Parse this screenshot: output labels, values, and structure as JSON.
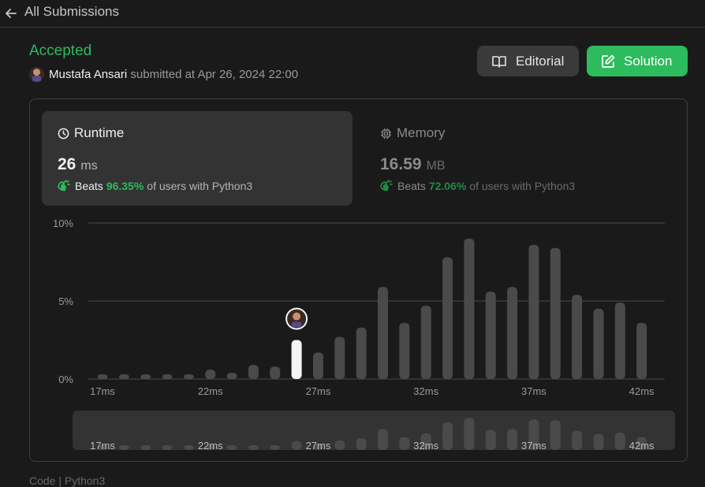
{
  "nav": {
    "back_label": "All Submissions"
  },
  "submission": {
    "status": "Accepted",
    "user": "Mustafa Ansari",
    "submitted_text": "submitted at Apr 26, 2024 22:00"
  },
  "actions": {
    "editorial_label": "Editorial",
    "solution_label": "Solution"
  },
  "runtime": {
    "title": "Runtime",
    "value": "26",
    "unit": "ms",
    "beats_label": "Beats",
    "beats_pct": "96.35%",
    "beats_suffix": "of users with Python3"
  },
  "memory": {
    "title": "Memory",
    "value": "16.59",
    "unit": "MB",
    "beats_label": "Beats",
    "beats_pct": "72.06%",
    "beats_suffix": "of users with Python3"
  },
  "footer_text": "Code | Python3",
  "colors": {
    "accent_green": "#2cbb5d",
    "bar": "#4a4a4a",
    "highlight_bar": "#f5f5f5"
  },
  "chart_data": {
    "type": "bar",
    "ylabel_ticks": [
      "0%",
      "5%",
      "10%"
    ],
    "ylim": [
      0,
      10
    ],
    "xlim": [
      17,
      43
    ],
    "x_tick_labels": [
      "17ms",
      "22ms",
      "27ms",
      "32ms",
      "37ms",
      "42ms"
    ],
    "x_tick_values": [
      17,
      22,
      27,
      32,
      37,
      42
    ],
    "x": [
      17,
      18,
      19,
      20,
      21,
      22,
      23,
      24,
      25,
      26,
      27,
      28,
      29,
      30,
      31,
      32,
      33,
      34,
      35,
      36,
      37,
      38,
      39,
      40,
      41,
      42
    ],
    "values": [
      0.3,
      0.3,
      0.3,
      0.3,
      0.3,
      0.6,
      0.4,
      0.9,
      0.8,
      2.5,
      1.7,
      2.7,
      3.3,
      5.9,
      3.6,
      4.7,
      7.8,
      9.0,
      5.6,
      5.9,
      8.6,
      8.4,
      5.4,
      4.5,
      4.9,
      3.6
    ],
    "highlight_x": 26,
    "grid": true
  }
}
